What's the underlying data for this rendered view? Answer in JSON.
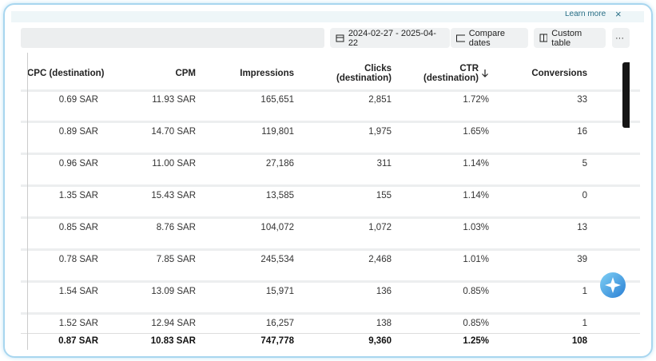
{
  "banner": {
    "link": "Learn more",
    "close": "×"
  },
  "toolbar": {
    "date_range": "2024-02-27 - 2025-04-22",
    "compare_dates": "Compare dates",
    "custom_table": "Custom table",
    "more": "···"
  },
  "table": {
    "columns": [
      "CPC (destination)",
      "CPM",
      "Impressions",
      "Clicks (destination)",
      "CTR (destination)",
      "Conversions"
    ],
    "rows": [
      [
        "0.69 SAR",
        "11.93 SAR",
        "165,651",
        "2,851",
        "1.72%",
        "33"
      ],
      [
        "0.89 SAR",
        "14.70 SAR",
        "119,801",
        "1,975",
        "1.65%",
        "16"
      ],
      [
        "0.96 SAR",
        "11.00 SAR",
        "27,186",
        "311",
        "1.14%",
        "5"
      ],
      [
        "1.35 SAR",
        "15.43 SAR",
        "13,585",
        "155",
        "1.14%",
        "0"
      ],
      [
        "0.85 SAR",
        "8.76 SAR",
        "104,072",
        "1,072",
        "1.03%",
        "13"
      ],
      [
        "0.78 SAR",
        "7.85 SAR",
        "245,534",
        "2,468",
        "1.01%",
        "39"
      ],
      [
        "1.54 SAR",
        "13.09 SAR",
        "15,971",
        "136",
        "0.85%",
        "1"
      ],
      [
        "1.52 SAR",
        "12.94 SAR",
        "16,257",
        "138",
        "0.85%",
        "1"
      ]
    ],
    "total": [
      "0.87 SAR",
      "10.83 SAR",
      "747,778",
      "9,360",
      "1.25%",
      "108"
    ]
  }
}
